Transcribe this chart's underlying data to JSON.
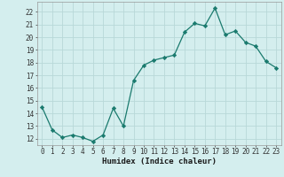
{
  "x": [
    0,
    1,
    2,
    3,
    4,
    5,
    6,
    7,
    8,
    9,
    10,
    11,
    12,
    13,
    14,
    15,
    16,
    17,
    18,
    19,
    20,
    21,
    22,
    23
  ],
  "y": [
    14.5,
    12.7,
    12.1,
    12.3,
    12.1,
    11.8,
    12.3,
    14.4,
    13.0,
    16.6,
    17.8,
    18.2,
    18.4,
    18.6,
    20.4,
    21.1,
    20.9,
    22.3,
    20.2,
    20.5,
    19.6,
    19.3,
    18.1,
    17.6
  ],
  "line_color": "#1a7a6e",
  "marker": "D",
  "marker_size": 2.2,
  "bg_color": "#d4eeee",
  "grid_color": "#b8d8d8",
  "xlabel": "Humidex (Indice chaleur)",
  "ylim": [
    11.5,
    22.8
  ],
  "xlim": [
    -0.5,
    23.5
  ],
  "yticks": [
    12,
    13,
    14,
    15,
    16,
    17,
    18,
    19,
    20,
    21,
    22
  ],
  "xticks": [
    0,
    1,
    2,
    3,
    4,
    5,
    6,
    7,
    8,
    9,
    10,
    11,
    12,
    13,
    14,
    15,
    16,
    17,
    18,
    19,
    20,
    21,
    22,
    23
  ],
  "tick_fontsize": 5.5,
  "xlabel_fontsize": 6.5
}
